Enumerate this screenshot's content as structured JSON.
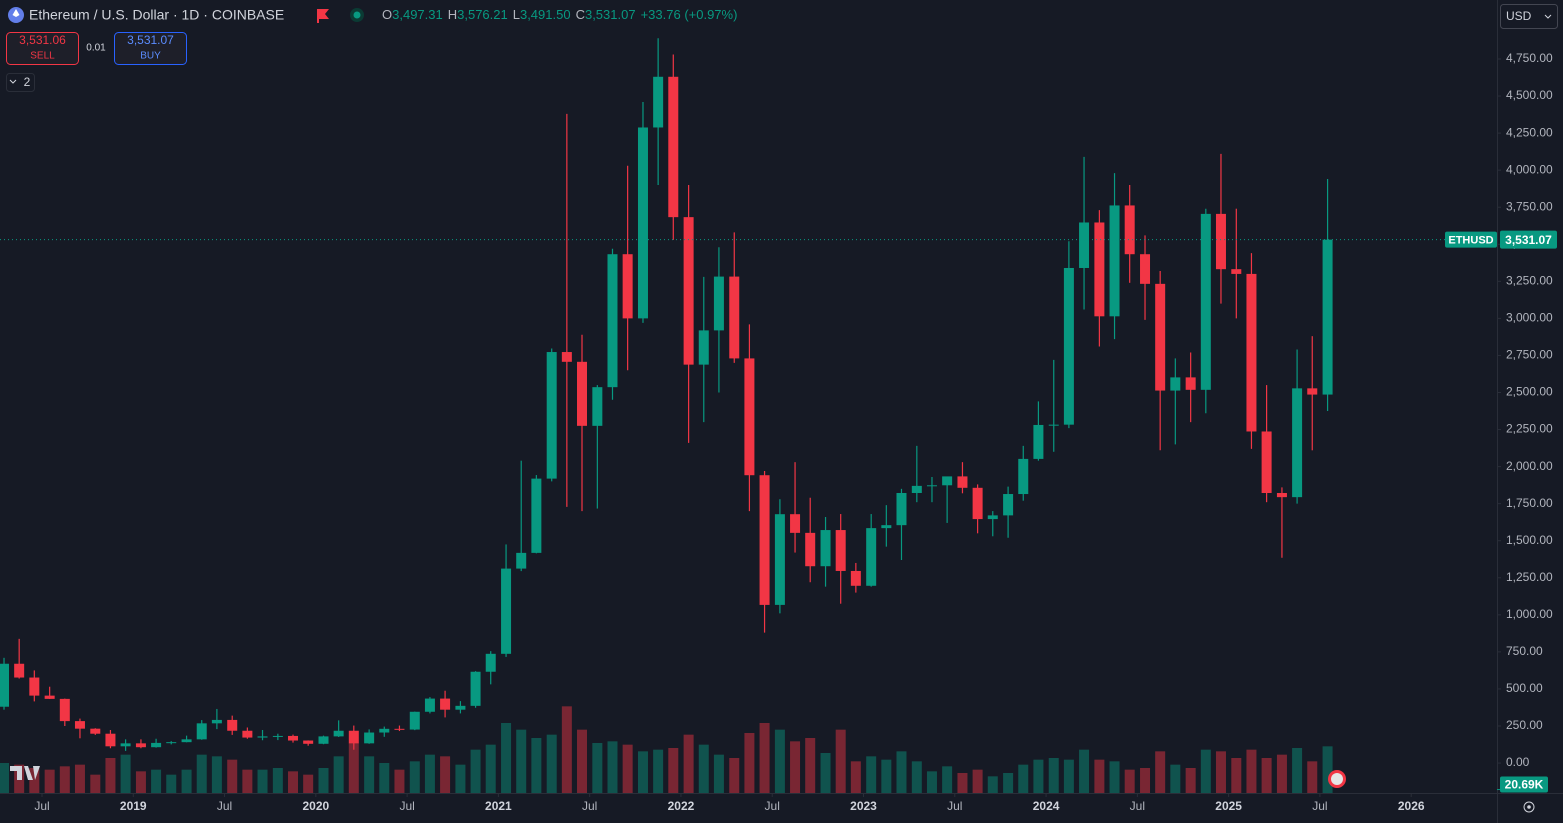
{
  "header": {
    "symbol": "Ethereum / U.S. Dollar · 1D · COINBASE",
    "o_label": "O",
    "open": "3,497.31",
    "h_label": "H",
    "high": "3,576.21",
    "l_label": "L",
    "low": "3,491.50",
    "c_label": "C",
    "close": "3,531.07",
    "change": "+33.76 (+0.97%)",
    "sell_price": "3,531.06",
    "sell": "SELL",
    "spread": "0.01",
    "buy_price": "3,531.07",
    "buy": "BUY",
    "indicators": "2",
    "currency": "USD"
  },
  "chart_data": {
    "type": "candlestick",
    "up_color": "#089981",
    "down_color": "#f23645",
    "xlim": [
      2018.27,
      2026.47
    ],
    "ylim": [
      -202,
      5148
    ],
    "xticks": [
      {
        "value": 2018.5,
        "label": "Jul"
      },
      2019,
      {
        "value": 2019.5,
        "label": "Jul"
      },
      2020,
      {
        "value": 2020.5,
        "label": "Jul"
      },
      2021,
      {
        "value": 2021.5,
        "label": "Jul"
      },
      2022,
      {
        "value": 2022.5,
        "label": "Jul"
      },
      2023,
      {
        "value": 2023.5,
        "label": "Jul"
      },
      2024,
      {
        "value": 2024.5,
        "label": "Jul"
      },
      2025,
      {
        "value": 2025.5,
        "label": "Jul"
      },
      2026
    ],
    "yticks": [
      {
        "value": 0,
        "label": "0.00"
      },
      {
        "value": 250,
        "label": "250.00"
      },
      {
        "value": 500,
        "label": "500.00"
      },
      {
        "value": 750,
        "label": "750.00"
      },
      {
        "value": 1000,
        "label": "1,000.00"
      },
      {
        "value": 1250,
        "label": "1,250.00"
      },
      {
        "value": 1500,
        "label": "1,500.00"
      },
      {
        "value": 1750,
        "label": "1,750.00"
      },
      {
        "value": 2000,
        "label": "2,000.00"
      },
      {
        "value": 2250,
        "label": "2,250.00"
      },
      {
        "value": 2500,
        "label": "2,500.00"
      },
      {
        "value": 2750,
        "label": "2,750.00"
      },
      {
        "value": 3000,
        "label": "3,000.00"
      },
      {
        "value": 3250,
        "label": "3,250.00"
      },
      {
        "value": 3500,
        "label": "3,500.00"
      },
      {
        "value": 3750,
        "label": "3,750.00"
      },
      {
        "value": 4000,
        "label": "4,000.00"
      },
      {
        "value": 4250,
        "label": "4,250.00"
      },
      {
        "value": 4500,
        "label": "4,500.00"
      },
      {
        "value": 4750,
        "label": "4,750.00"
      }
    ],
    "x": [
      2018.292,
      2018.375,
      2018.458,
      2018.542,
      2018.625,
      2018.708,
      2018.792,
      2018.875,
      2018.958,
      2019.042,
      2019.125,
      2019.208,
      2019.292,
      2019.375,
      2019.458,
      2019.542,
      2019.625,
      2019.708,
      2019.792,
      2019.875,
      2019.958,
      2020.042,
      2020.125,
      2020.208,
      2020.292,
      2020.375,
      2020.458,
      2020.542,
      2020.625,
      2020.708,
      2020.792,
      2020.875,
      2020.958,
      2021.042,
      2021.125,
      2021.208,
      2021.292,
      2021.375,
      2021.458,
      2021.542,
      2021.625,
      2021.708,
      2021.792,
      2021.875,
      2021.958,
      2022.042,
      2022.125,
      2022.208,
      2022.292,
      2022.375,
      2022.458,
      2022.542,
      2022.625,
      2022.708,
      2022.792,
      2022.875,
      2022.958,
      2023.042,
      2023.125,
      2023.208,
      2023.292,
      2023.375,
      2023.458,
      2023.542,
      2023.625,
      2023.708,
      2023.792,
      2023.875,
      2023.958,
      2024.042,
      2024.125,
      2024.208,
      2024.292,
      2024.375,
      2024.458,
      2024.542,
      2024.625,
      2024.708,
      2024.792,
      2024.875,
      2024.958,
      2025.042,
      2025.125,
      2025.208,
      2025.292,
      2025.375,
      2025.458,
      2025.542
    ],
    "ohlc": [
      [
        380,
        710,
        360,
        670
      ],
      [
        670,
        838,
        570,
        577
      ],
      [
        577,
        625,
        416,
        455
      ],
      [
        455,
        515,
        432,
        433
      ],
      [
        433,
        435,
        250,
        283
      ],
      [
        283,
        300,
        167,
        232
      ],
      [
        232,
        235,
        190,
        198
      ],
      [
        198,
        223,
        100,
        113
      ],
      [
        113,
        160,
        82,
        133
      ],
      [
        133,
        160,
        100,
        107
      ],
      [
        107,
        164,
        104,
        136
      ],
      [
        136,
        148,
        126,
        141
      ],
      [
        141,
        185,
        140,
        160
      ],
      [
        160,
        290,
        157,
        268
      ],
      [
        268,
        365,
        229,
        291
      ],
      [
        291,
        320,
        190,
        218
      ],
      [
        218,
        240,
        164,
        172
      ],
      [
        172,
        223,
        154,
        180
      ],
      [
        180,
        198,
        155,
        183
      ],
      [
        183,
        192,
        138,
        152
      ],
      [
        152,
        153,
        117,
        130
      ],
      [
        130,
        185,
        127,
        180
      ],
      [
        180,
        288,
        176,
        218
      ],
      [
        218,
        253,
        90,
        133
      ],
      [
        133,
        227,
        130,
        206
      ],
      [
        206,
        246,
        177,
        231
      ],
      [
        231,
        253,
        216,
        226
      ],
      [
        226,
        347,
        222,
        346
      ],
      [
        346,
        445,
        335,
        435
      ],
      [
        435,
        488,
        308,
        360
      ],
      [
        360,
        418,
        335,
        386
      ],
      [
        386,
        620,
        373,
        616
      ],
      [
        616,
        755,
        531,
        737
      ],
      [
        737,
        1475,
        716,
        1312
      ],
      [
        1312,
        2040,
        1295,
        1418
      ],
      [
        1418,
        1943,
        1415,
        1919
      ],
      [
        1919,
        2797,
        1900,
        2773
      ],
      [
        2773,
        4380,
        1728,
        2707
      ],
      [
        2707,
        2890,
        1700,
        2275
      ],
      [
        2275,
        2550,
        1717,
        2536
      ],
      [
        2536,
        3470,
        2451,
        3433
      ],
      [
        3433,
        4030,
        2650,
        3000
      ],
      [
        3000,
        4460,
        2970,
        4288
      ],
      [
        4288,
        4890,
        3900,
        4630
      ],
      [
        4630,
        4780,
        3530,
        3683
      ],
      [
        3683,
        3900,
        2160,
        2688
      ],
      [
        2688,
        3280,
        2300,
        2919
      ],
      [
        2919,
        3480,
        2500,
        3282
      ],
      [
        3282,
        3580,
        2700,
        2730
      ],
      [
        2730,
        2960,
        1700,
        1942
      ],
      [
        1942,
        1970,
        880,
        1067
      ],
      [
        1067,
        1780,
        1010,
        1679
      ],
      [
        1679,
        2030,
        1420,
        1553
      ],
      [
        1553,
        1790,
        1220,
        1328
      ],
      [
        1328,
        1660,
        1190,
        1572
      ],
      [
        1572,
        1680,
        1075,
        1296
      ],
      [
        1296,
        1350,
        1150,
        1196
      ],
      [
        1196,
        1680,
        1190,
        1585
      ],
      [
        1585,
        1740,
        1460,
        1605
      ],
      [
        1605,
        1850,
        1370,
        1822
      ],
      [
        1822,
        2140,
        1760,
        1870
      ],
      [
        1870,
        1930,
        1760,
        1874
      ],
      [
        1874,
        1930,
        1620,
        1934
      ],
      [
        1934,
        2030,
        1820,
        1857
      ],
      [
        1857,
        1880,
        1550,
        1646
      ],
      [
        1646,
        1700,
        1530,
        1671
      ],
      [
        1671,
        1865,
        1520,
        1815
      ],
      [
        1815,
        2140,
        1770,
        2052
      ],
      [
        2052,
        2440,
        2040,
        2281
      ],
      [
        2281,
        2720,
        2100,
        2283
      ],
      [
        2283,
        3520,
        2260,
        3340
      ],
      [
        3340,
        4090,
        3060,
        3647
      ],
      [
        3647,
        3730,
        2810,
        3014
      ],
      [
        3014,
        3980,
        2860,
        3762
      ],
      [
        3762,
        3900,
        3240,
        3433
      ],
      [
        3433,
        3560,
        2990,
        3233
      ],
      [
        3233,
        3320,
        2110,
        2513
      ],
      [
        2513,
        2730,
        2150,
        2602
      ],
      [
        2602,
        2770,
        2300,
        2518
      ],
      [
        2518,
        3740,
        2360,
        3705
      ],
      [
        3705,
        4110,
        3100,
        3332
      ],
      [
        3332,
        3740,
        3000,
        3300
      ],
      [
        3300,
        3440,
        2120,
        2237
      ],
      [
        2237,
        2550,
        1760,
        1822
      ],
      [
        1822,
        1860,
        1385,
        1794
      ],
      [
        1794,
        2790,
        1750,
        2528
      ],
      [
        2528,
        2880,
        2110,
        2486
      ],
      [
        2486,
        3940,
        2375,
        3531.07
      ]
    ],
    "volume_ylim": [
      0,
      1200000
    ],
    "volume": [
      180000,
      170000,
      150000,
      140000,
      160000,
      170000,
      110000,
      210000,
      230000,
      130000,
      140000,
      110000,
      140000,
      230000,
      220000,
      200000,
      140000,
      140000,
      150000,
      130000,
      110000,
      150000,
      220000,
      300000,
      220000,
      180000,
      140000,
      190000,
      230000,
      220000,
      170000,
      260000,
      290000,
      420000,
      380000,
      330000,
      350000,
      520000,
      380000,
      300000,
      310000,
      290000,
      250000,
      260000,
      270000,
      350000,
      290000,
      230000,
      210000,
      360000,
      420000,
      380000,
      310000,
      330000,
      240000,
      380000,
      190000,
      220000,
      200000,
      250000,
      190000,
      130000,
      160000,
      120000,
      140000,
      100000,
      120000,
      170000,
      200000,
      210000,
      200000,
      260000,
      200000,
      190000,
      140000,
      150000,
      250000,
      170000,
      150000,
      260000,
      250000,
      210000,
      260000,
      210000,
      230000,
      270000,
      190000,
      280000
    ],
    "volume_last": {
      "value": 20690,
      "label": "20.69K"
    },
    "symbol_tag": "ETHUSD",
    "last_price": {
      "value": 3531.07,
      "label": "3,531.07"
    }
  }
}
